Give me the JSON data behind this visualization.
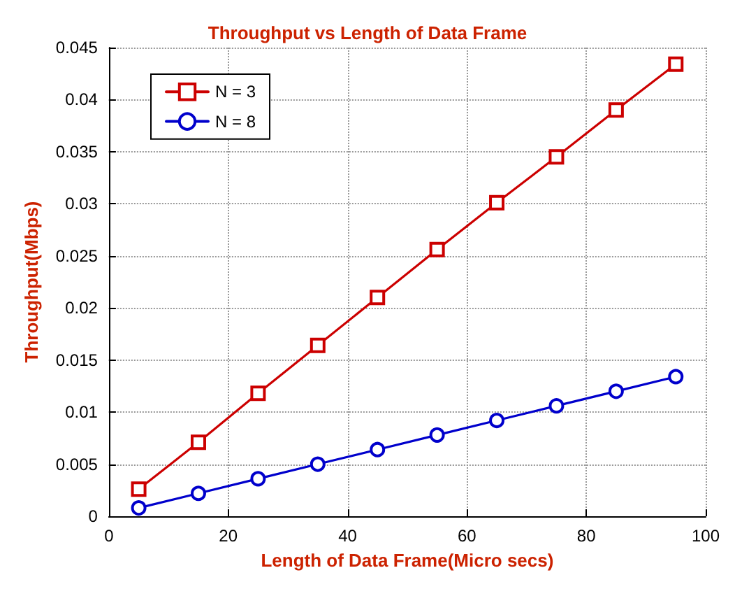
{
  "chart_data": {
    "type": "line",
    "title": "Throughput vs Length of Data Frame",
    "xlabel": "Length of Data Frame(Micro secs)",
    "ylabel": "Throughput(Mbps)",
    "x": [
      5,
      15,
      25,
      35,
      45,
      55,
      65,
      75,
      85,
      95
    ],
    "series": [
      {
        "name": "N = 3",
        "color": "#cc0000",
        "marker": "square",
        "values": [
          0.0026,
          0.0071,
          0.0118,
          0.0164,
          0.021,
          0.0256,
          0.0301,
          0.0345,
          0.039,
          0.0434
        ]
      },
      {
        "name": "N = 8",
        "color": "#0000cc",
        "marker": "circle",
        "values": [
          0.0008,
          0.0022,
          0.0036,
          0.005,
          0.0064,
          0.0078,
          0.0092,
          0.0106,
          0.012,
          0.0134
        ]
      }
    ],
    "xlim": [
      0,
      100
    ],
    "xticks": [
      0,
      20,
      40,
      60,
      80,
      100
    ],
    "ylim": [
      0,
      0.045
    ],
    "yticks": [
      0,
      0.005,
      0.01,
      0.015,
      0.02,
      0.025,
      0.03,
      0.035,
      0.04,
      0.045
    ],
    "grid": true,
    "legend": "top left",
    "line_style": "solid"
  }
}
